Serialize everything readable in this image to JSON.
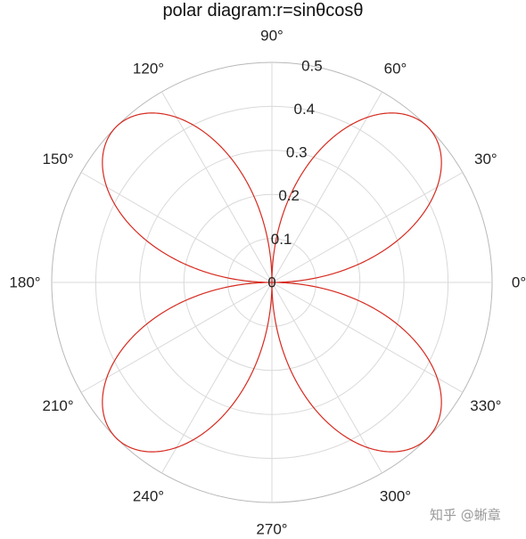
{
  "chart_data": {
    "type": "polar-line",
    "title": "polar diagram:r=sinθcosθ",
    "function": "r=sinθcosθ",
    "theta_deg": [
      0,
      15,
      30,
      45,
      60,
      75,
      90,
      105,
      120,
      135,
      150,
      165,
      180,
      195,
      210,
      225,
      240,
      255,
      270,
      285,
      300,
      315,
      330,
      345,
      360
    ],
    "r": [
      0,
      0.25,
      0.433,
      0.5,
      0.433,
      0.25,
      0,
      0.25,
      0.433,
      0.5,
      0.433,
      0.25,
      0,
      0.25,
      0.433,
      0.5,
      0.433,
      0.25,
      0,
      0.25,
      0.433,
      0.5,
      0.433,
      0.25,
      0
    ],
    "r_ticks": [
      "0",
      "0.1",
      "0.2",
      "0.3",
      "0.4",
      "0.5"
    ],
    "r_lim": [
      0,
      0.5
    ],
    "theta_ticks": [
      "0°",
      "30°",
      "60°",
      "90°",
      "120°",
      "150°",
      "180°",
      "210°",
      "240°",
      "270°",
      "300°",
      "330°"
    ],
    "grid": true,
    "line_color": "#d62a1f",
    "grid_color": "#d9d9d9",
    "outer_ring_color": "#b8b8b8"
  },
  "watermark": {
    "text": "知乎 @蜥章"
  }
}
